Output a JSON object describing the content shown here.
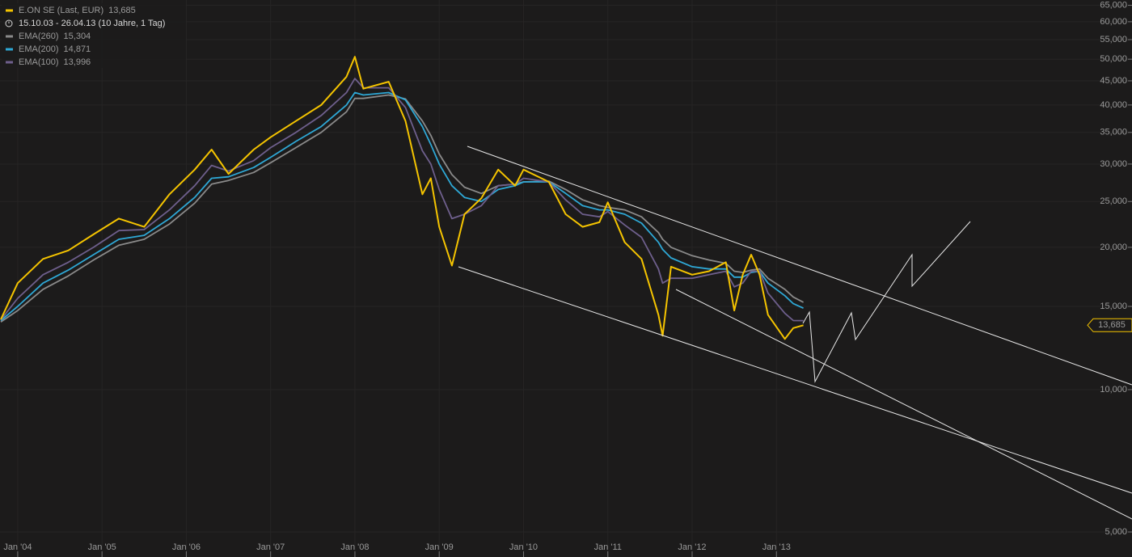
{
  "chart_data": {
    "type": "line",
    "log_scale": true,
    "grid": true,
    "subtitle": "15.10.03 - 26.04.13 (10 Jahre, 1 Tag)",
    "x": [
      2003.8,
      2004.0,
      2004.3,
      2004.6,
      2004.9,
      2005.2,
      2005.5,
      2005.8,
      2006.1,
      2006.3,
      2006.5,
      2006.8,
      2007.0,
      2007.3,
      2007.6,
      2007.9,
      2008.0,
      2008.1,
      2008.4,
      2008.6,
      2008.8,
      2008.9,
      2009.0,
      2009.15,
      2009.3,
      2009.5,
      2009.7,
      2009.9,
      2010.0,
      2010.3,
      2010.5,
      2010.7,
      2010.9,
      2011.0,
      2011.2,
      2011.4,
      2011.6,
      2011.65,
      2011.75,
      2012.0,
      2012.2,
      2012.4,
      2012.5,
      2012.6,
      2012.7,
      2012.8,
      2012.9,
      2013.1,
      2013.2,
      2013.32
    ],
    "series": [
      {
        "name": "EMA(260)",
        "color": "#8a8a8a",
        "last_label": "15,304",
        "values": [
          13900,
          14700,
          16300,
          17400,
          18800,
          20200,
          20800,
          22400,
          24800,
          27200,
          27700,
          28800,
          30200,
          32500,
          35000,
          38700,
          41300,
          41300,
          42000,
          41200,
          37000,
          34500,
          31500,
          28500,
          26800,
          26000,
          27000,
          27200,
          27500,
          27600,
          26500,
          25200,
          24500,
          24300,
          24000,
          23200,
          21500,
          20800,
          20000,
          19200,
          18800,
          18500,
          17800,
          17700,
          17900,
          18000,
          17200,
          16300,
          15700,
          15304
        ]
      },
      {
        "name": "EMA(200)",
        "color": "#2ea8d6",
        "last_label": "14,871",
        "values": [
          14000,
          15000,
          16800,
          17900,
          19300,
          20800,
          21200,
          23000,
          25500,
          28000,
          28200,
          29500,
          31000,
          33500,
          36000,
          40000,
          42500,
          42000,
          42500,
          41000,
          36000,
          33000,
          30000,
          27000,
          25500,
          25000,
          26500,
          27000,
          27500,
          27500,
          26000,
          24500,
          24000,
          24000,
          23500,
          22500,
          20500,
          19800,
          19000,
          18200,
          18000,
          18000,
          17300,
          17300,
          17700,
          17800,
          16800,
          15800,
          15200,
          14871
        ]
      },
      {
        "name": "EMA(100)",
        "color": "#6e5f8c",
        "last_label": "13,996",
        "values": [
          14050,
          15600,
          17500,
          18600,
          20000,
          21700,
          21800,
          24000,
          27000,
          29800,
          29000,
          30500,
          32500,
          35000,
          38000,
          42500,
          45500,
          43500,
          43500,
          39500,
          32000,
          30000,
          26500,
          23000,
          23500,
          24500,
          27000,
          27200,
          28000,
          27500,
          25200,
          23500,
          23200,
          23800,
          22300,
          21000,
          18000,
          16800,
          17200,
          17200,
          17500,
          17800,
          16500,
          16800,
          17800,
          17800,
          16000,
          14500,
          14000,
          13996
        ]
      },
      {
        "name": "E.ON SE (Last, EUR)",
        "color": "#f5c400",
        "last_label": "13,685",
        "values": [
          14080,
          16800,
          18900,
          19700,
          21300,
          23000,
          22100,
          25900,
          29200,
          32200,
          28600,
          32200,
          34200,
          37000,
          40000,
          45900,
          50600,
          43300,
          44800,
          37000,
          25900,
          28000,
          22100,
          18300,
          23500,
          25400,
          29200,
          27000,
          29200,
          27500,
          23500,
          22100,
          22600,
          24900,
          20500,
          18900,
          14400,
          13000,
          18200,
          17500,
          17800,
          18600,
          14700,
          17500,
          19300,
          17500,
          14400,
          12800,
          13500,
          13685
        ]
      }
    ],
    "xlim": [
      2003.79,
      2016.69
    ],
    "xticks": [
      {
        "value": 2004,
        "label": "Jan '04"
      },
      {
        "value": 2005,
        "label": "Jan '05"
      },
      {
        "value": 2006,
        "label": "Jan '06"
      },
      {
        "value": 2007,
        "label": "Jan '07"
      },
      {
        "value": 2008,
        "label": "Jan '08"
      },
      {
        "value": 2009,
        "label": "Jan '09"
      },
      {
        "value": 2010,
        "label": "Jan '10"
      },
      {
        "value": 2011,
        "label": "Jan '11"
      },
      {
        "value": 2012,
        "label": "Jan '12"
      },
      {
        "value": 2013,
        "label": "Jan '13"
      }
    ],
    "ylim": [
      4426,
      66700
    ],
    "yticks": [
      {
        "value": 5000,
        "label": "5,000"
      },
      {
        "value": 10000,
        "label": "10,000"
      },
      {
        "value": 15000,
        "label": "15,000"
      },
      {
        "value": 20000,
        "label": "20,000"
      },
      {
        "value": 25000,
        "label": "25,000"
      },
      {
        "value": 30000,
        "label": "30,000"
      },
      {
        "value": 35000,
        "label": "35,000"
      },
      {
        "value": 40000,
        "label": "40,000"
      },
      {
        "value": 45000,
        "label": "45,000"
      },
      {
        "value": 50000,
        "label": "50,000"
      },
      {
        "value": 55000,
        "label": "55,000"
      },
      {
        "value": 60000,
        "label": "60,000"
      },
      {
        "value": 65000,
        "label": "65,000"
      }
    ]
  }
}
